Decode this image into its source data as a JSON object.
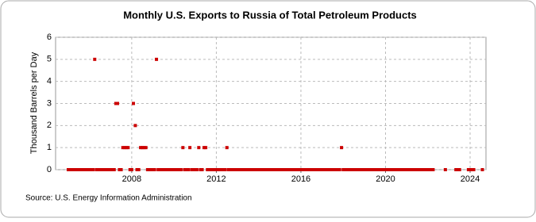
{
  "chart_data": {
    "type": "scatter",
    "title": "Monthly U.S. Exports to Russia of Total Petroleum Products",
    "y_label": "Thousand Barrels per Day",
    "source": "Source: U.S. Energy Information Administration",
    "color": "#cc0000",
    "grid": true,
    "xlim": [
      2004.4,
      2024.75
    ],
    "xticks": [
      2008,
      2012,
      2016,
      2020,
      2024
    ],
    "ylim": [
      0,
      6
    ],
    "yticks": [
      0,
      1,
      2,
      3,
      4,
      5,
      6
    ],
    "x": [
      2005,
      2005.08,
      2005.17,
      2005.25,
      2005.33,
      2005.42,
      2005.5,
      2005.58,
      2005.67,
      2005.75,
      2005.83,
      2005.92,
      2006,
      2006.08,
      2006.17,
      2006.25,
      2006.33,
      2006.42,
      2006.5,
      2006.58,
      2006.67,
      2006.75,
      2006.83,
      2006.92,
      2007,
      2007.08,
      2007.17,
      2007.25,
      2007.33,
      2007.42,
      2007.5,
      2007.58,
      2007.67,
      2007.75,
      2007.83,
      2007.92,
      2008,
      2008.08,
      2008.17,
      2008.25,
      2008.33,
      2008.42,
      2008.5,
      2008.58,
      2008.67,
      2008.75,
      2008.83,
      2008.92,
      2009,
      2009.08,
      2009.17,
      2009.25,
      2009.33,
      2009.42,
      2009.5,
      2009.58,
      2009.67,
      2009.75,
      2009.83,
      2009.92,
      2010,
      2010.08,
      2010.17,
      2010.25,
      2010.33,
      2010.42,
      2010.5,
      2010.58,
      2010.67,
      2010.75,
      2010.83,
      2010.92,
      2011,
      2011.08,
      2011.17,
      2011.25,
      2011.33,
      2011.42,
      2011.5,
      2011.58,
      2011.67,
      2011.75,
      2011.83,
      2011.92,
      2012,
      2012.08,
      2012.17,
      2012.25,
      2012.33,
      2012.42,
      2012.5,
      2012.58,
      2012.67,
      2012.75,
      2012.83,
      2012.92,
      2013,
      2013.08,
      2013.17,
      2013.25,
      2013.33,
      2013.42,
      2013.5,
      2013.58,
      2013.67,
      2013.75,
      2013.83,
      2013.92,
      2014,
      2014.08,
      2014.17,
      2014.25,
      2014.33,
      2014.42,
      2014.5,
      2014.58,
      2014.67,
      2014.75,
      2014.83,
      2014.92,
      2015,
      2015.08,
      2015.17,
      2015.25,
      2015.33,
      2015.42,
      2015.5,
      2015.58,
      2015.67,
      2015.75,
      2015.83,
      2015.92,
      2016,
      2016.08,
      2016.17,
      2016.25,
      2016.33,
      2016.42,
      2016.5,
      2016.58,
      2016.67,
      2016.75,
      2016.83,
      2016.92,
      2017,
      2017.08,
      2017.17,
      2017.25,
      2017.33,
      2017.42,
      2017.5,
      2017.58,
      2017.67,
      2017.75,
      2017.83,
      2017.92,
      2018,
      2018.08,
      2018.17,
      2018.25,
      2018.33,
      2018.42,
      2018.5,
      2018.58,
      2018.67,
      2018.75,
      2018.83,
      2018.92,
      2019,
      2019.08,
      2019.17,
      2019.25,
      2019.33,
      2019.42,
      2019.5,
      2019.58,
      2019.67,
      2019.75,
      2019.83,
      2019.92,
      2020,
      2020.08,
      2020.17,
      2020.25,
      2020.33,
      2020.42,
      2020.5,
      2020.58,
      2020.67,
      2020.75,
      2020.83,
      2020.92,
      2021,
      2021.08,
      2021.17,
      2021.25,
      2021.33,
      2021.42,
      2021.5,
      2021.58,
      2021.67,
      2021.75,
      2021.83,
      2021.92,
      2022,
      2022.08,
      2022.17,
      2022.25,
      2022.83,
      2023.33,
      2023.42,
      2023.5,
      2023.92,
      2024,
      2024.08,
      2024.17,
      2024.58
    ],
    "values": [
      0,
      0,
      0,
      0,
      0,
      0,
      0,
      0,
      0,
      0,
      0,
      0,
      0,
      0,
      0,
      5,
      0,
      0,
      0,
      0,
      0,
      0,
      0,
      0,
      0,
      0,
      0,
      3,
      3,
      0,
      0,
      1,
      1,
      1,
      1,
      0,
      0,
      3,
      2,
      0,
      0,
      1,
      1,
      1,
      1,
      0,
      0,
      0,
      0,
      0,
      5,
      0,
      0,
      0,
      0,
      0,
      0,
      0,
      0,
      0,
      0,
      0,
      0,
      0,
      0,
      1,
      0,
      0,
      0,
      1,
      0,
      0,
      0,
      0,
      1,
      0,
      0,
      1,
      1,
      0,
      0,
      0,
      0,
      0,
      0,
      0,
      0,
      0,
      0,
      0,
      1,
      0,
      0,
      0,
      0,
      0,
      0,
      0,
      0,
      0,
      0,
      0,
      0,
      0,
      0,
      0,
      0,
      0,
      0,
      0,
      0,
      0,
      0,
      0,
      0,
      0,
      0,
      0,
      0,
      0,
      0,
      0,
      0,
      0,
      0,
      0,
      0,
      0,
      0,
      0,
      0,
      0,
      0,
      0,
      0,
      0,
      0,
      0,
      0,
      0,
      0,
      0,
      0,
      0,
      0,
      0,
      0,
      0,
      0,
      0,
      0,
      0,
      0,
      0,
      0,
      1,
      0,
      0,
      0,
      0,
      0,
      0,
      0,
      0,
      0,
      0,
      0,
      0,
      0,
      0,
      0,
      0,
      0,
      0,
      0,
      0,
      0,
      0,
      0,
      0,
      0,
      0,
      0,
      0,
      0,
      0,
      0,
      0,
      0,
      0,
      0,
      0,
      0,
      0,
      0,
      0,
      0,
      0,
      0,
      0,
      0,
      0,
      0,
      0,
      0,
      0,
      0,
      0,
      0,
      0,
      0,
      0,
      0,
      0,
      0,
      0,
      0
    ]
  }
}
